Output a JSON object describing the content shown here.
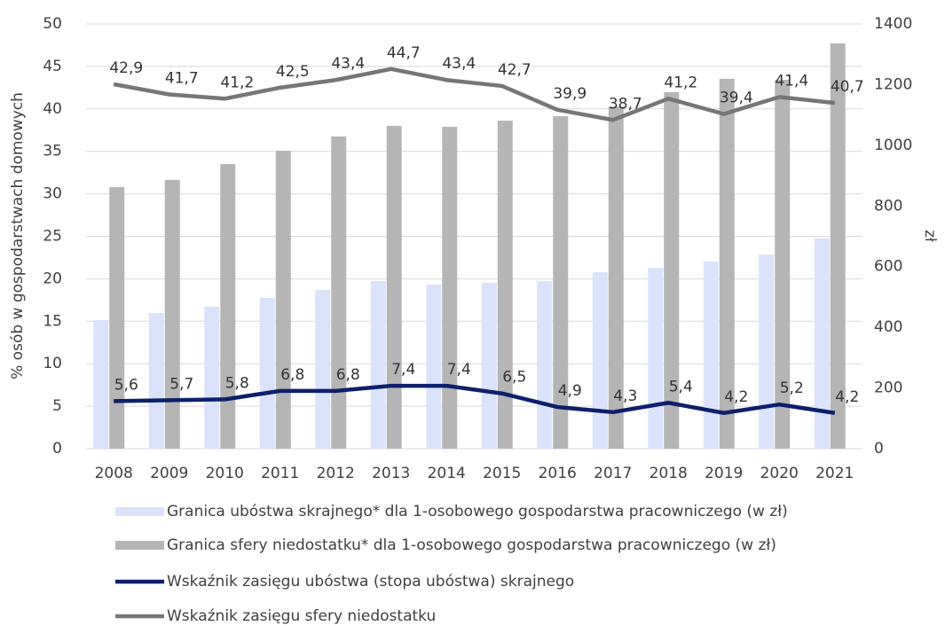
{
  "chart_data": {
    "type": "bar_line",
    "y_label": "% osób w gospodarstwach domowych",
    "y2_label": "zł",
    "categories": [
      "2008",
      "2009",
      "2010",
      "2011",
      "2012",
      "2013",
      "2014",
      "2015",
      "2016",
      "2017",
      "2018",
      "2019",
      "2020",
      "2021"
    ],
    "ylim": [
      0,
      50
    ],
    "yticks": [
      0,
      5,
      10,
      15,
      20,
      25,
      30,
      35,
      40,
      45,
      50
    ],
    "y2lim": [
      0,
      1400
    ],
    "y2ticks": [
      0,
      200,
      400,
      600,
      800,
      1000,
      1200,
      1400
    ],
    "grid": true,
    "series": [
      {
        "name": "Granica ubóstwa skrajnego* dla 1-osobowego gospodarstwa pracowniczego (w zł)",
        "type": "bar",
        "axis": "y2",
        "color": "#dae3fb",
        "values": [
          424,
          447,
          468,
          497,
          523,
          552,
          541,
          547,
          552,
          582,
          596,
          617,
          640,
          693
        ]
      },
      {
        "name": "Granica sfery niedostatku* dla 1-osobowego gospodarstwa pracowniczego (w zł)",
        "type": "bar",
        "axis": "y2",
        "color": "#b5b5b5",
        "values": [
          862,
          886,
          938,
          982,
          1029,
          1064,
          1061,
          1081,
          1096,
          1128,
          1175,
          1219,
          1216,
          1336
        ]
      },
      {
        "name": "Wskaźnik zasięgu ubóstwa (stopa ubóstwa) skrajnego",
        "type": "line",
        "color": "#0d1f6b",
        "values": [
          5.6,
          5.7,
          5.8,
          6.8,
          6.8,
          7.4,
          7.4,
          6.5,
          4.9,
          4.3,
          5.4,
          4.2,
          5.2,
          4.2
        ],
        "value_labels": [
          "5,6",
          "5,7",
          "5,8",
          "6,8",
          "6,8",
          "7,4",
          "7,4",
          "6,5",
          "4,9",
          "4,3",
          "5,4",
          "4,2",
          "5,2",
          "4,2"
        ]
      },
      {
        "name": "Wskaźnik zasięgu sfery niedostatku",
        "type": "line",
        "color": "#767676",
        "values": [
          42.9,
          41.7,
          41.2,
          42.5,
          43.4,
          44.7,
          43.4,
          42.7,
          39.9,
          38.7,
          41.2,
          39.4,
          41.4,
          40.7
        ],
        "value_labels": [
          "42,9",
          "41,7",
          "41,2",
          "42,5",
          "43,4",
          "44,7",
          "43,4",
          "42,7",
          "39,9",
          "38,7",
          "41,2",
          "39,4",
          "41,4",
          "40,7"
        ]
      }
    ]
  }
}
